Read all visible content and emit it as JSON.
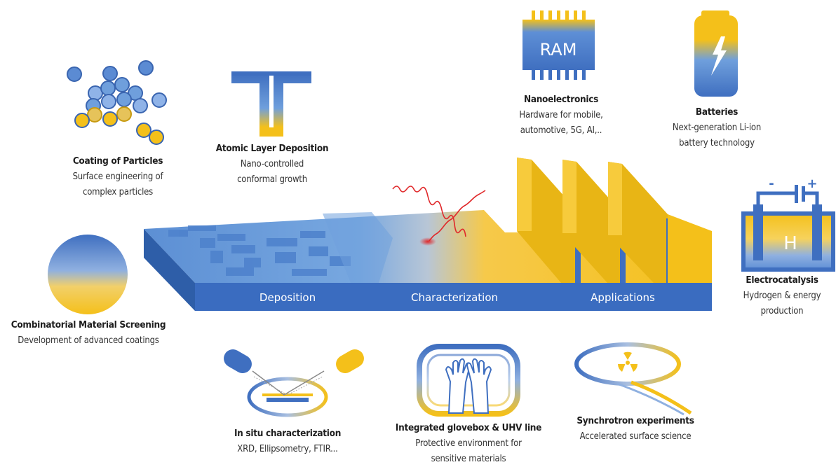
{
  "colors": {
    "blue": "#3f6fc0",
    "light_blue": "#6f9fdc",
    "yellow": "#f4c01a",
    "dark_yellow": "#d9a300",
    "red": "#e0282a"
  },
  "band": {
    "deposition": "Deposition",
    "characterization": "Characterization",
    "applications": "Applications"
  },
  "ram": {
    "label": "RAM"
  },
  "electro": {
    "letter": "H",
    "minus": "-",
    "plus": "+"
  },
  "items": {
    "coating": {
      "title": "Coating of Particles",
      "line1": "Surface engineering of",
      "line2": "complex particles"
    },
    "ald": {
      "title": "Atomic Layer Deposition",
      "line1": "Nano-controlled",
      "line2": "conformal growth"
    },
    "nano": {
      "title": "Nanoelectronics",
      "line1": "Hardware for mobile,",
      "line2": "automotive, 5G, AI,.."
    },
    "batteries": {
      "title": "Batteries",
      "line1": "Next-generation Li-ion",
      "line2": "battery technology"
    },
    "electrocatalysis": {
      "title": "Electrocatalysis",
      "line1": "Hydrogen & energy",
      "line2": "production"
    },
    "combinatorial": {
      "title": "Combinatorial Material Screening",
      "line1": "Development of advanced coatings"
    },
    "insitu": {
      "title": "In situ characterization",
      "line1": "XRD, Ellipsometry, FTIR..."
    },
    "glovebox": {
      "title": "Integrated glovebox & UHV line",
      "line1": "Protective environment for",
      "line2": "sensitive materials"
    },
    "synchrotron": {
      "title": "Synchrotron experiments",
      "line1": "Accelerated surface science"
    }
  }
}
